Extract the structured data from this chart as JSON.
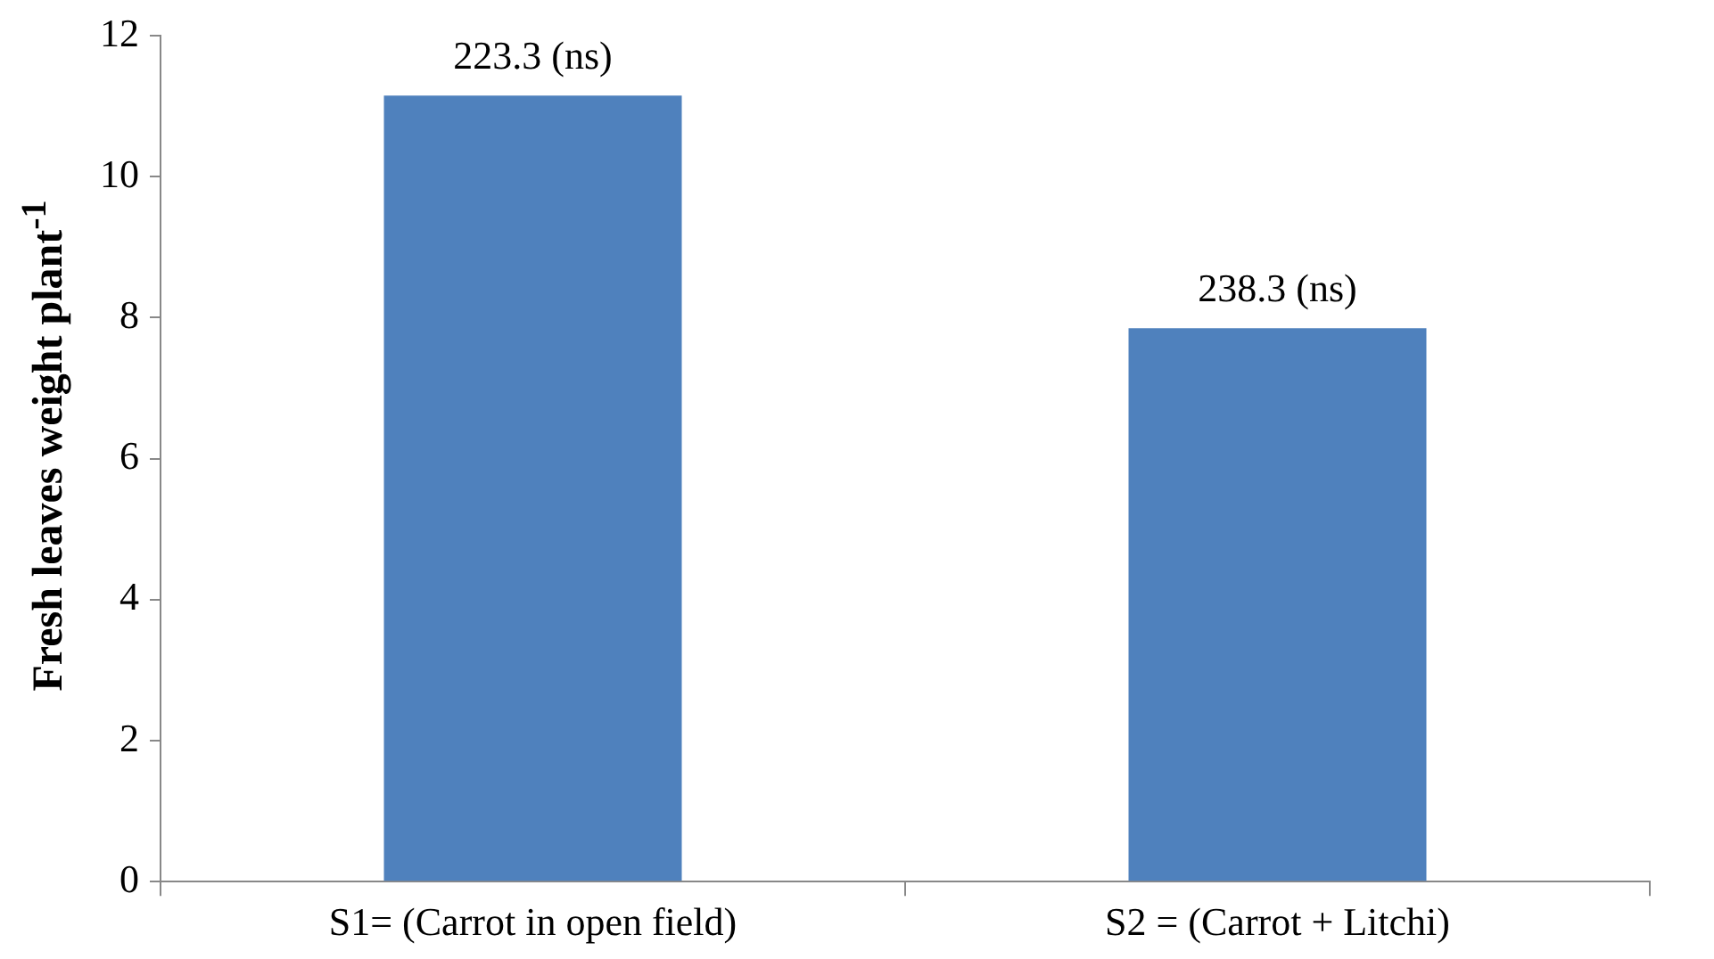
{
  "chart_data": {
    "type": "bar",
    "ylabel": "Fresh leaves weight plant$^{-1}$",
    "categories": [
      "S1= (Carrot in open field)",
      "S2 = (Carrot + Litchi)"
    ],
    "values": [
      11.15,
      7.85
    ],
    "color": "#4f81bd",
    "ylim": [
      0,
      12
    ],
    "yticks": [
      0,
      2,
      4,
      6,
      8,
      10,
      12
    ],
    "grid": false,
    "legend": false,
    "annotations": [
      {
        "text": "223.3 (ns)",
        "x": "S1= (Carrot in open field)",
        "y": 11.15
      },
      {
        "text": "238.3 (ns)",
        "x": "S2 = (Carrot + Litchi)",
        "y": 7.85
      }
    ]
  }
}
